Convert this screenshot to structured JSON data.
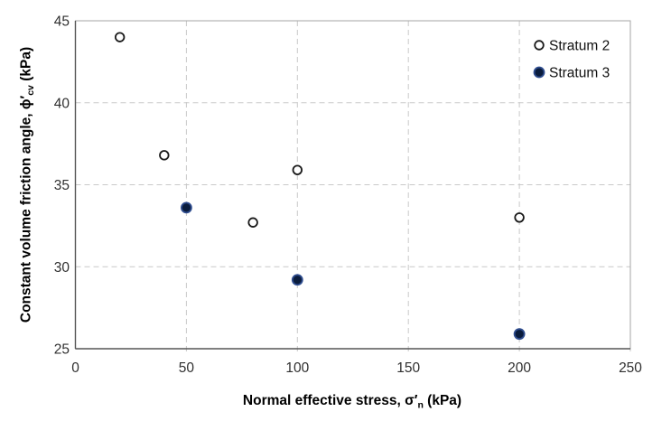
{
  "chart_data": {
    "type": "scatter",
    "title": "",
    "xlabel": "Normal effective stress, σ′n (kPa)",
    "ylabel": "Constant volume friction angle, ϕ′cv (kPa)",
    "xlabel_parts": {
      "pre": "Normal effective stress, ",
      "symbol": "σ′",
      "sub": "n",
      "post": " (kPa)"
    },
    "ylabel_parts": {
      "pre": "Constant volume friction angle, ",
      "symbol": "ϕ′",
      "sub": "cv",
      "post": " (kPa)"
    },
    "xlim": [
      0,
      250
    ],
    "ylim": [
      25,
      45
    ],
    "x_ticks": [
      0,
      50,
      100,
      150,
      200,
      250
    ],
    "y_ticks": [
      25,
      30,
      35,
      40,
      45
    ],
    "grid": {
      "style": "dashed",
      "horizontal_at": [
        30,
        35,
        40
      ],
      "vertical_at": [
        50,
        100,
        150,
        200,
        250
      ]
    },
    "legend_position": "top-right-inside",
    "series": [
      {
        "name": "Stratum 2",
        "marker": "open-circle",
        "stroke": "#1a1a1a",
        "fill": "#ffffff",
        "points": [
          [
            20,
            44.0
          ],
          [
            40,
            36.8
          ],
          [
            80,
            32.7
          ],
          [
            100,
            35.9
          ],
          [
            200,
            33.0
          ]
        ]
      },
      {
        "name": "Stratum 3",
        "marker": "filled-circle",
        "stroke": "#2f4d8f",
        "fill": "#0a1c3d",
        "points": [
          [
            50,
            33.6
          ],
          [
            100,
            29.2
          ],
          [
            200,
            25.9
          ]
        ]
      }
    ],
    "colors": {
      "background": "#ffffff",
      "grid": "#c9c9c9",
      "plot_border": "#a6a6a6",
      "axis_line": "#555555",
      "tick_label": "#303030",
      "axis_title": "#000000",
      "legend_text": "#111111"
    }
  }
}
